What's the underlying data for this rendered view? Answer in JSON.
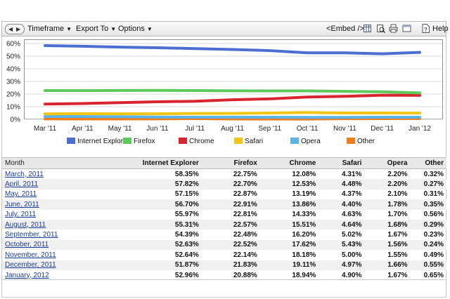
{
  "toolbar": {
    "timeframe_label": "Timeframe",
    "export_label": "Export To",
    "options_label": "Options",
    "embed_label": "<Embed />",
    "help_label": "Help"
  },
  "colors": {
    "Internet Explorer": "#4a6fd0",
    "Firefox": "#5ec95b",
    "Chrome": "#d8242f",
    "Safari": "#f2c514",
    "Opera": "#5bb3e8",
    "Other": "#f07c1b"
  },
  "chart_data": {
    "type": "line",
    "categories": [
      "Mar '11",
      "Apr '11",
      "May '11",
      "Jun '11",
      "Jul '11",
      "Aug '11",
      "Sep '11",
      "Oct '11",
      "Nov '11",
      "Dec '11",
      "Jan '12"
    ],
    "ylim": [
      0,
      60
    ],
    "yticks": [
      "0%",
      "10%",
      "20%",
      "30%",
      "40%",
      "50%",
      "60%"
    ],
    "grid": true,
    "legend_placement": "bottom",
    "series": [
      {
        "name": "Internet Explorer",
        "values": [
          58.35,
          57.82,
          57.15,
          56.7,
          55.97,
          55.31,
          54.39,
          52.63,
          52.64,
          51.87,
          52.96
        ]
      },
      {
        "name": "Firefox",
        "values": [
          22.75,
          22.7,
          22.87,
          22.91,
          22.81,
          22.57,
          22.48,
          22.52,
          22.14,
          21.83,
          20.88
        ]
      },
      {
        "name": "Chrome",
        "values": [
          12.08,
          12.53,
          13.19,
          13.86,
          14.33,
          15.51,
          16.2,
          17.62,
          18.18,
          19.11,
          18.94
        ]
      },
      {
        "name": "Safari",
        "values": [
          4.31,
          4.48,
          4.37,
          4.4,
          4.63,
          4.64,
          5.02,
          5.43,
          5.0,
          4.97,
          4.9
        ]
      },
      {
        "name": "Opera",
        "values": [
          2.2,
          2.2,
          2.1,
          1.78,
          1.7,
          1.68,
          1.67,
          1.56,
          1.55,
          1.66,
          1.67
        ]
      },
      {
        "name": "Other",
        "values": [
          0.32,
          0.27,
          0.31,
          0.35,
          0.56,
          0.29,
          0.23,
          0.24,
          0.49,
          0.55,
          0.65
        ]
      }
    ]
  },
  "table": {
    "headers": [
      "Month",
      "Internet Explorer",
      "Firefox",
      "Chrome",
      "Safari",
      "Opera",
      "Other"
    ],
    "rows": [
      [
        "March, 2011",
        "58.35%",
        "22.75%",
        "12.08%",
        "4.31%",
        "2.20%",
        "0.32%"
      ],
      [
        "April, 2011",
        "57.82%",
        "22.70%",
        "12.53%",
        "4.48%",
        "2.20%",
        "0.27%"
      ],
      [
        "May, 2011",
        "57.15%",
        "22.87%",
        "13.19%",
        "4.37%",
        "2.10%",
        "0.31%"
      ],
      [
        "June, 2011",
        "56.70%",
        "22.91%",
        "13.86%",
        "4.40%",
        "1.78%",
        "0.35%"
      ],
      [
        "July, 2011",
        "55.97%",
        "22.81%",
        "14.33%",
        "4.63%",
        "1.70%",
        "0.56%"
      ],
      [
        "August, 2011",
        "55.31%",
        "22.57%",
        "15.51%",
        "4.64%",
        "1.68%",
        "0.29%"
      ],
      [
        "September, 2011",
        "54.39%",
        "22.48%",
        "16.20%",
        "5.02%",
        "1.67%",
        "0.23%"
      ],
      [
        "October, 2011",
        "52.63%",
        "22.52%",
        "17.62%",
        "5.43%",
        "1.56%",
        "0.24%"
      ],
      [
        "November, 2011",
        "52.64%",
        "22.14%",
        "18.18%",
        "5.00%",
        "1.55%",
        "0.49%"
      ],
      [
        "December, 2011",
        "51.87%",
        "21.83%",
        "19.11%",
        "4.97%",
        "1.66%",
        "0.55%"
      ],
      [
        "January, 2012",
        "52.96%",
        "20.88%",
        "18.94%",
        "4.90%",
        "1.67%",
        "0.65%"
      ]
    ]
  }
}
